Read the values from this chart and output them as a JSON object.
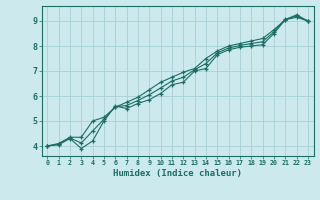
{
  "xlabel": "Humidex (Indice chaleur)",
  "ylabel": "",
  "bg_color": "#cce9ee",
  "grid_color": "#aacfd8",
  "line_color": "#1a6e64",
  "xlim": [
    -0.5,
    23.5
  ],
  "ylim": [
    3.6,
    9.6
  ],
  "xtick_vals": [
    0,
    1,
    2,
    3,
    4,
    5,
    6,
    7,
    8,
    9,
    10,
    11,
    12,
    13,
    14,
    15,
    16,
    17,
    18,
    19,
    20,
    21,
    22,
    23
  ],
  "xtick_labels": [
    "0",
    "1",
    "2",
    "3",
    "4",
    "5",
    "6",
    "7",
    "8",
    "9",
    "10",
    "11",
    "12",
    "13",
    "14",
    "15",
    "16",
    "17",
    "18",
    "19",
    "20",
    "21",
    "22",
    "23"
  ],
  "ytick_vals": [
    4,
    5,
    6,
    7,
    8,
    9
  ],
  "ytick_labels": [
    "4",
    "5",
    "6",
    "7",
    "8",
    "9"
  ],
  "series1_x": [
    0,
    1,
    2,
    3,
    4,
    5,
    6,
    7,
    8,
    9,
    10,
    11,
    12,
    13,
    14,
    15,
    16,
    17,
    18,
    19,
    20,
    21,
    22,
    23
  ],
  "series1_y": [
    4.0,
    4.05,
    4.3,
    3.9,
    4.2,
    5.0,
    5.6,
    5.5,
    5.7,
    5.85,
    6.1,
    6.45,
    6.55,
    7.0,
    7.1,
    7.65,
    7.85,
    7.95,
    8.0,
    8.05,
    8.5,
    9.05,
    9.25,
    9.0
  ],
  "series2_x": [
    0,
    1,
    2,
    3,
    4,
    5,
    6,
    7,
    8,
    9,
    10,
    11,
    12,
    13,
    14,
    15,
    16,
    17,
    18,
    19,
    20,
    21,
    22,
    23
  ],
  "series2_y": [
    4.0,
    4.1,
    4.35,
    4.35,
    5.0,
    5.15,
    5.55,
    5.75,
    5.95,
    6.25,
    6.55,
    6.75,
    6.95,
    7.1,
    7.5,
    7.8,
    8.0,
    8.1,
    8.2,
    8.3,
    8.65,
    9.05,
    9.15,
    9.0
  ],
  "series3_x": [
    0,
    1,
    2,
    3,
    4,
    5,
    6,
    7,
    8,
    9,
    10,
    11,
    12,
    13,
    14,
    15,
    16,
    17,
    18,
    19,
    20,
    21,
    22,
    23
  ],
  "series3_y": [
    4.0,
    4.07,
    4.32,
    4.12,
    4.6,
    5.07,
    5.57,
    5.62,
    5.82,
    6.05,
    6.32,
    6.6,
    6.75,
    7.05,
    7.3,
    7.72,
    7.92,
    8.02,
    8.1,
    8.17,
    8.57,
    9.07,
    9.2,
    9.0
  ]
}
